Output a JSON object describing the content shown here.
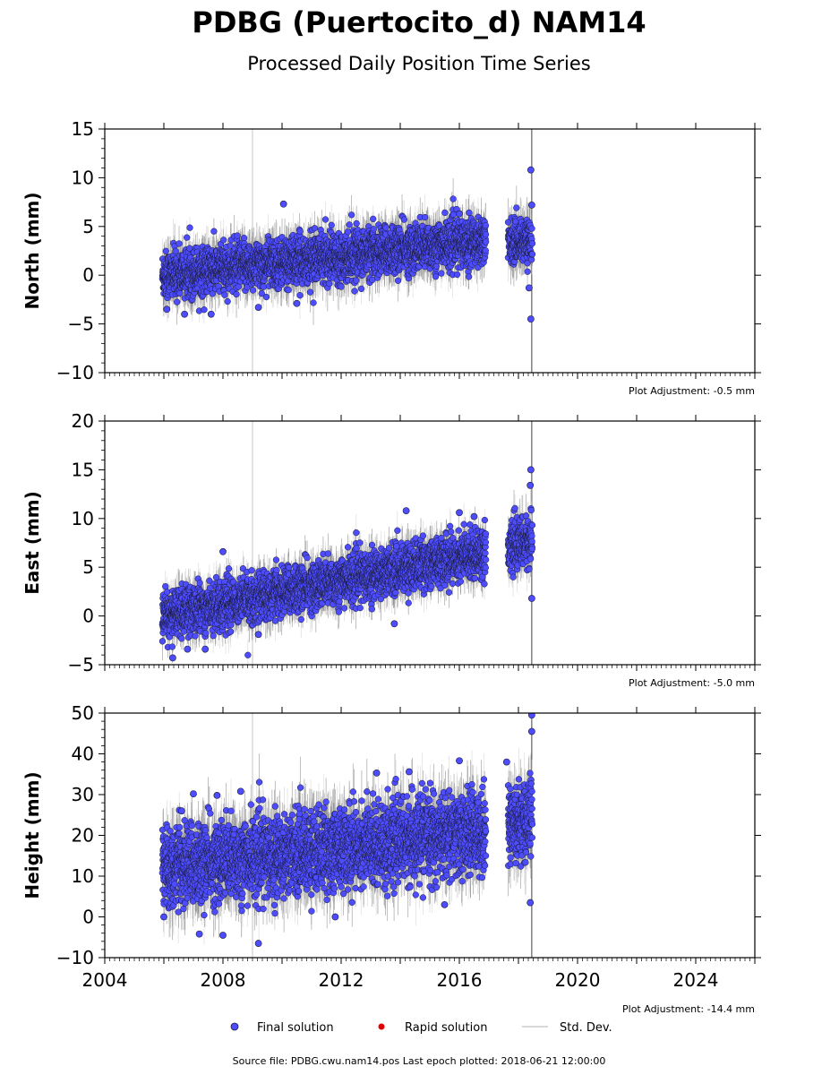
{
  "figure": {
    "title": "PDBG (Puertocito_d) NAM14",
    "subtitle": "Processed Daily Position Time Series",
    "source_note": "Source file: PDBG.cwu.nam14.pos  Last epoch plotted: 2018-06-21 12:00:00"
  },
  "legend": {
    "placement": "bottom-center",
    "items": [
      {
        "label": "Final solution",
        "color": "#4d4dff",
        "marker": "circle"
      },
      {
        "label": "Rapid solution",
        "color": "#e00000",
        "marker": "circle"
      },
      {
        "label": "Std. Dev.",
        "color": "#cccccc",
        "marker": "line"
      }
    ]
  },
  "colors": {
    "final_fill": "#4d4dff",
    "final_edge": "#1a1a33",
    "errorbar": "#808080",
    "errorbar_light": "#cfcfcf",
    "rapid": "#e00000"
  },
  "chart_data": [
    {
      "type": "scatter",
      "ylabel": "North (mm)",
      "xlim": [
        2004,
        2026
      ],
      "ylim": [
        -10,
        15
      ],
      "yticks": [
        -10,
        -5,
        0,
        5,
        10,
        15
      ],
      "xticks": [
        2004,
        2008,
        2012,
        2016,
        2020,
        2024
      ],
      "adjustment": "Plot Adjustment: -0.5 mm",
      "series": [
        {
          "name": "Final solution",
          "segments": [
            {
              "x_start": 2005.95,
              "x_end": 2016.9,
              "start": 0.0,
              "end": 3.6,
              "sd": 1.5,
              "err": 1.8
            },
            {
              "x_start": 2017.65,
              "x_end": 2018.47,
              "start": 3.4,
              "end": 3.6,
              "sd": 1.3,
              "err": 1.8
            }
          ],
          "outliers": [
            [
              2010.05,
              7.3
            ],
            [
              2018.42,
              10.8
            ],
            [
              2018.42,
              -4.5
            ],
            [
              2018.36,
              -1.3
            ],
            [
              2006.1,
              -3.5
            ],
            [
              2006.7,
              -4.0
            ],
            [
              2007.6,
              -4.0
            ],
            [
              2009.2,
              -3.3
            ],
            [
              2010.5,
              -2.9
            ],
            [
              2018.45,
              7.2
            ],
            [
              2016.0,
              6.3
            ]
          ]
        }
      ]
    },
    {
      "type": "scatter",
      "ylabel": "East (mm)",
      "xlim": [
        2004,
        2026
      ],
      "ylim": [
        -5,
        20
      ],
      "yticks": [
        -5,
        0,
        5,
        10,
        15,
        20
      ],
      "xticks": [
        2004,
        2008,
        2012,
        2016,
        2020,
        2024
      ],
      "adjustment": "Plot Adjustment: -5.0 mm",
      "series": [
        {
          "name": "Final solution",
          "segments": [
            {
              "x_start": 2005.95,
              "x_end": 2016.9,
              "start": 0.0,
              "end": 6.6,
              "sd": 1.5,
              "err": 1.6
            },
            {
              "x_start": 2017.65,
              "x_end": 2018.47,
              "start": 7.0,
              "end": 7.8,
              "sd": 1.5,
              "err": 1.8
            }
          ],
          "outliers": [
            [
              2018.42,
              15.0
            ],
            [
              2018.4,
              13.4
            ],
            [
              2018.45,
              1.8
            ],
            [
              2013.8,
              -0.8
            ],
            [
              2008.0,
              6.6
            ],
            [
              2014.2,
              10.8
            ],
            [
              2016.0,
              10.6
            ],
            [
              2016.5,
              10.2
            ],
            [
              2006.3,
              -4.3
            ],
            [
              2006.8,
              -3.4
            ],
            [
              2007.4,
              -3.4
            ],
            [
              2009.2,
              -1.9
            ]
          ]
        }
      ]
    },
    {
      "type": "scatter",
      "ylabel": "Height (mm)",
      "xlim": [
        2004,
        2026
      ],
      "ylim": [
        -10,
        50
      ],
      "yticks": [
        -10,
        0,
        10,
        20,
        30,
        40,
        50
      ],
      "xticks": [
        2004,
        2008,
        2012,
        2016,
        2020,
        2024
      ],
      "xticklabels": [
        "2004",
        "2008",
        "2012",
        "2016",
        "2020",
        "2024"
      ],
      "adjustment": "Plot Adjustment: -14.4 mm",
      "series": [
        {
          "name": "Final solution",
          "segments": [
            {
              "x_start": 2005.95,
              "x_end": 2016.9,
              "start": 12.0,
              "end": 21.0,
              "sd": 6.0,
              "err": 6.0
            },
            {
              "x_start": 2017.65,
              "x_end": 2018.47,
              "start": 23.0,
              "end": 24.0,
              "sd": 6.0,
              "err": 6.0
            }
          ],
          "outliers": [
            [
              2018.45,
              49.5
            ],
            [
              2018.45,
              45.5
            ],
            [
              2018.4,
              3.5
            ],
            [
              2009.2,
              -6.5
            ],
            [
              2007.0,
              30.2
            ],
            [
              2007.8,
              29.8
            ],
            [
              2008.6,
              30.8
            ],
            [
              2013.2,
              35.3
            ],
            [
              2014.3,
              35.6
            ],
            [
              2017.6,
              38.0
            ],
            [
              2016.0,
              38.3
            ],
            [
              2007.2,
              -4.2
            ],
            [
              2008.0,
              -4.5
            ],
            [
              2011.8,
              0.0
            ],
            [
              2006.0,
              0.0
            ],
            [
              2006.6,
              26.0
            ],
            [
              2015.5,
              3.0
            ]
          ]
        }
      ]
    }
  ]
}
